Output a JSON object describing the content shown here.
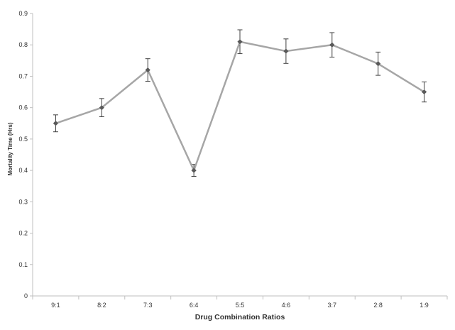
{
  "chart_data": {
    "type": "line",
    "title": "",
    "xlabel": "Drug Combination Ratios",
    "ylabel": "Mortality Time (Hrs)",
    "categories": [
      "9:1",
      "8:2",
      "7:3",
      "6:4",
      "5:5",
      "4:6",
      "3:7",
      "2:8",
      "1:9"
    ],
    "series": [
      {
        "values": [
          0.55,
          0.6,
          0.72,
          0.4,
          0.81,
          0.78,
          0.8,
          0.74,
          0.65
        ],
        "error": [
          0.027,
          0.029,
          0.036,
          0.019,
          0.038,
          0.039,
          0.039,
          0.037,
          0.032
        ]
      }
    ],
    "ylim": [
      0,
      0.9
    ],
    "yticks": [
      "0",
      "0.1",
      "0.2",
      "0.3",
      "0.4",
      "0.5",
      "0.6",
      "0.7",
      "0.8",
      "0.9"
    ],
    "grid": false,
    "legend": "none",
    "colors": {
      "line": "#a6a6a6",
      "marker": "#595959",
      "error_bar": "#404040",
      "axis": "#bfbfbf",
      "text": "#333333"
    }
  }
}
